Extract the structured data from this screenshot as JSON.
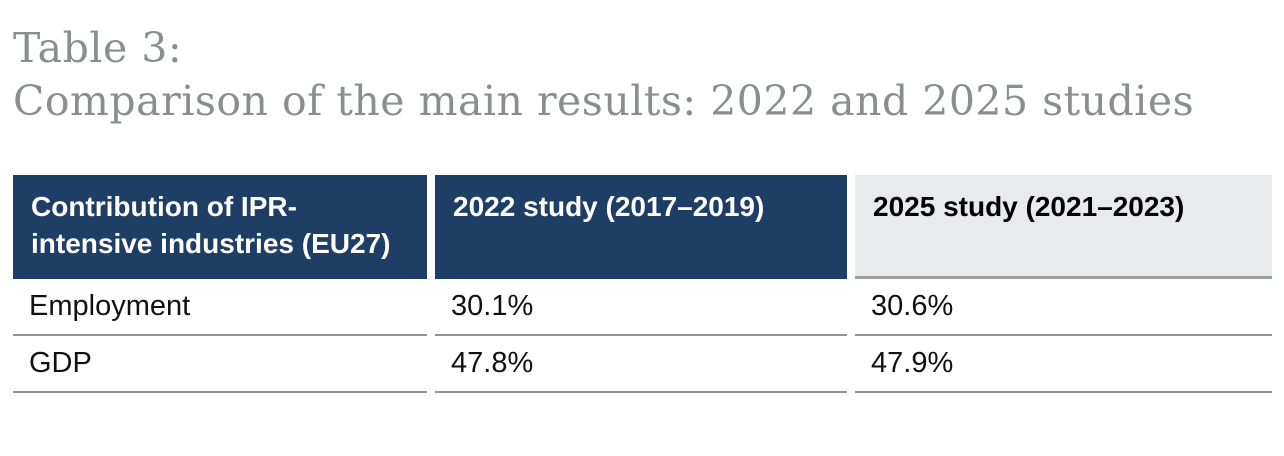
{
  "title": {
    "line1": "Table 3:",
    "line2": "Comparison of the main results: 2022 and 2025 studies"
  },
  "table": {
    "columns": [
      {
        "label": "Contribution of IPR-intensive industries (EU27)"
      },
      {
        "label": "2022 study (2017–2019)"
      },
      {
        "label": "2025 study (2021–2023)"
      }
    ],
    "rows": [
      {
        "label": "Employment",
        "values": [
          "30.1%",
          "30.6%"
        ]
      },
      {
        "label": "GDP",
        "values": [
          "47.8%",
          "47.9%"
        ]
      }
    ]
  },
  "colors": {
    "header_navy": "#1e3e66",
    "header_gray": "#e9eaec",
    "title_gray": "#8b8e91",
    "row_border": "#8f9296"
  }
}
